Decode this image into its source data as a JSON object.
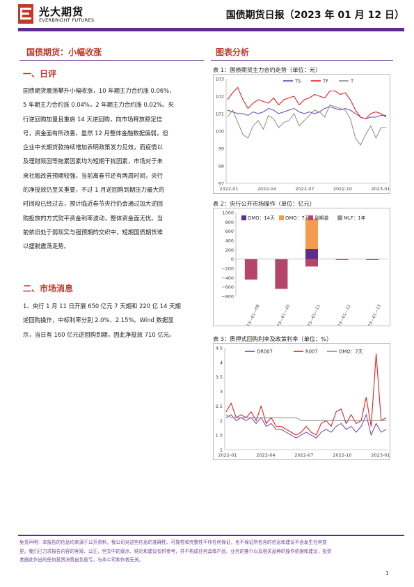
{
  "header": {
    "brand_cn": "光大期货",
    "brand_en": "EVERBRIGHT FUTURES",
    "report_title": "国债期货日报（2023 年 01 月 12 日）"
  },
  "colors": {
    "accent_purple": "#5b2d8e",
    "heading_red": "#c0392b"
  },
  "left": {
    "title": "国债期货：小幅收涨",
    "section1": {
      "heading": "一、日评",
      "lines": [
        "国债期货震荡攀升小幅收涨，10 年期主力合约涨 0.06%，",
        "5 年期主力合约涨 0.04%，2 年期主力合约涨 0.02%。央",
        "行逆回购加量且重启 14 天逆回购，向市场释放稳定信",
        "号，资金面有所改善。虽然 12 月整体金融数据偏弱，但",
        "企业中长期贷款持续增加表明政策发力见效，而疫情以",
        "及理财赎回等拖累因素均为短期干扰因素，市场对于未",
        "来社融改善预期较强。当前离春节还有两周时间，央行",
        "的净投放仍至关重要，不过 1 月逆回购到期压力最大的",
        "时间段已经过去，预计临近春节央行仍会通过加大逆回",
        "购投放的方式熨平资金利率波动，整体资金面无忧。当",
        "前依旧处于弱现实与强预期的交织中，短期国债期货难",
        "以摆脱震荡走势。"
      ]
    },
    "section2": {
      "heading": "二、市场消息",
      "lines": [
        "1、央行 1 月 11 日开展 650 亿元 7 天期和 220 亿 14 天期",
        "逆回购操作，中标利率分别 2.0%、2.15%。Wind 数据显",
        "示，当日有 160 亿元逆回购到期，因此净投放 710 亿元。"
      ]
    }
  },
  "right": {
    "title": "图表分析",
    "chart1_title": "表 1：国债期货主力合约走势（单位：元）",
    "chart2_title": "表 2：央行公开市场操作（单位：亿元）",
    "chart3_title": "表 3：质押式回购利率及政策利率（单位：%）"
  },
  "chart_data": [
    {
      "type": "line",
      "title": "表 1：国债期货主力合约走势（单位：元）",
      "x_ticks": [
        "2022-01",
        "2022-04",
        "2022-07",
        "2022-10",
        "2023-01"
      ],
      "ylim": [
        97,
        103
      ],
      "y_ticks": [
        "97",
        "98",
        "99",
        "100",
        "101",
        "102",
        "103"
      ],
      "series": [
        {
          "name": "TS",
          "color": "#6a3fb0",
          "values": [
            101.2,
            101.1,
            101.0,
            101.0,
            100.9,
            101.1,
            101.0,
            101.1,
            101.3,
            101.2,
            101.0,
            101.1,
            101.2,
            101.3,
            101.1,
            101.0,
            101.1,
            101.0,
            101.1,
            101.3,
            101.4,
            101.3,
            101.2,
            101.3,
            101.2,
            101.0,
            100.8,
            100.7,
            100.8,
            100.8,
            100.9,
            100.9
          ]
        },
        {
          "name": "TF",
          "color": "#e02020",
          "values": [
            101.8,
            102.2,
            102.5,
            101.8,
            101.3,
            101.6,
            101.8,
            101.7,
            101.6,
            101.9,
            101.5,
            101.8,
            101.9,
            102.0,
            101.5,
            101.8,
            101.9,
            102.1,
            102.0,
            101.9,
            102.3,
            102.3,
            102.1,
            102.2,
            101.8,
            101.2,
            100.8,
            100.7,
            101.0,
            101.1,
            101.0,
            100.8
          ]
        },
        {
          "name": "T",
          "color": "#8c8c8c",
          "values": [
            100.8,
            101.2,
            100.5,
            99.8,
            99.6,
            100.3,
            100.6,
            100.1,
            100.9,
            100.7,
            100.2,
            100.5,
            100.6,
            101.0,
            100.3,
            100.6,
            100.9,
            101.2,
            101.1,
            100.8,
            101.5,
            101.4,
            101.3,
            101.2,
            100.7,
            99.6,
            99.2,
            99.8,
            100.3,
            99.6,
            100.2,
            100.2
          ]
        }
      ]
    },
    {
      "type": "bar",
      "title": "表 2：央行公开市场操作（单位：亿元）",
      "categories": [
        "2023—01—09",
        "2023—01—10",
        "2023—01—11",
        "2023—01—12",
        "2023—01—13"
      ],
      "ylim": [
        -800,
        1000
      ],
      "y_ticks": [
        "1000",
        "800",
        "600",
        "400",
        "200",
        "0",
        "−200",
        "−400",
        "−600",
        "−800"
      ],
      "series": [
        {
          "name": "OMO：14天",
          "color": "#5b2d8e",
          "values": [
            0,
            0,
            220,
            0,
            0
          ]
        },
        {
          "name": "OMO：7天",
          "color": "#f39c4f",
          "values": [
            0,
            0,
            650,
            0,
            0
          ]
        },
        {
          "name": "到期量",
          "color": "#b5456b",
          "values": [
            -440,
            -640,
            -160,
            -20,
            -20
          ]
        },
        {
          "name": "MLF：1年",
          "color": "#999999",
          "values": [
            0,
            0,
            0,
            0,
            0
          ]
        }
      ]
    },
    {
      "type": "line",
      "title": "表 3：质押式回购利率及政策利率（单位：%）",
      "x_ticks": [
        "2022-01",
        "2022-04",
        "2022-07",
        "2022-10",
        "2023-01"
      ],
      "ylim": [
        1,
        4.5
      ],
      "y_ticks": [
        "1",
        "1.5",
        "2",
        "2.5",
        "3",
        "3.5",
        "4",
        "4.5"
      ],
      "series": [
        {
          "name": "DR007",
          "color": "#6a3fb0",
          "values": [
            2.1,
            2.2,
            2.0,
            2.1,
            2.0,
            2.1,
            1.9,
            2.1,
            1.8,
            1.9,
            1.7,
            1.7,
            1.6,
            1.5,
            1.4,
            1.5,
            1.6,
            1.5,
            1.4,
            1.6,
            1.7,
            1.6,
            1.8,
            1.9,
            1.7,
            1.8,
            1.6,
            1.8,
            2.2,
            1.5,
            1.9,
            1.6,
            1.7
          ]
        },
        {
          "name": "R007",
          "color": "#e02020",
          "values": [
            2.3,
            2.6,
            2.1,
            2.2,
            2.1,
            2.3,
            2.0,
            2.5,
            1.9,
            2.1,
            1.8,
            1.8,
            1.7,
            1.6,
            1.5,
            1.6,
            1.8,
            1.6,
            1.5,
            1.9,
            2.0,
            1.8,
            2.3,
            2.4,
            1.9,
            2.2,
            1.9,
            2.0,
            2.8,
            1.8,
            4.3,
            2.0,
            2.1
          ]
        },
        {
          "name": "OMO：7天",
          "color": "#888888",
          "values": [
            2.2,
            2.1,
            2.1,
            2.1,
            2.1,
            2.1,
            2.1,
            2.1,
            2.1,
            2.1,
            2.1,
            2.1,
            2.1,
            2.1,
            2.1,
            2.0,
            2.0,
            2.0,
            2.0,
            2.0,
            2.0,
            2.0,
            2.0,
            2.0,
            2.0,
            2.0,
            2.0,
            2.0,
            2.0,
            2.0,
            2.0,
            2.0,
            2.0
          ]
        }
      ]
    }
  ],
  "footer": {
    "disclaimer_1": "免责声明：本报告的信息均来源于公开资料，我公司对这些信息的准确性、可靠性和完整性不作任何保证，也不保证所包含的信息和建议不会发生任何变",
    "disclaimer_2": "更。我们已力求报告内容的客观、公正，但文中的观点、结论和建议仅供参考，并不构成任何具体产品、业务的推介以及相关品种的操作依据和建议，投资",
    "disclaimer_3": "者据此作出的任何投资决策自负盈亏，与本公司和作者无关。",
    "page_number": "1"
  }
}
